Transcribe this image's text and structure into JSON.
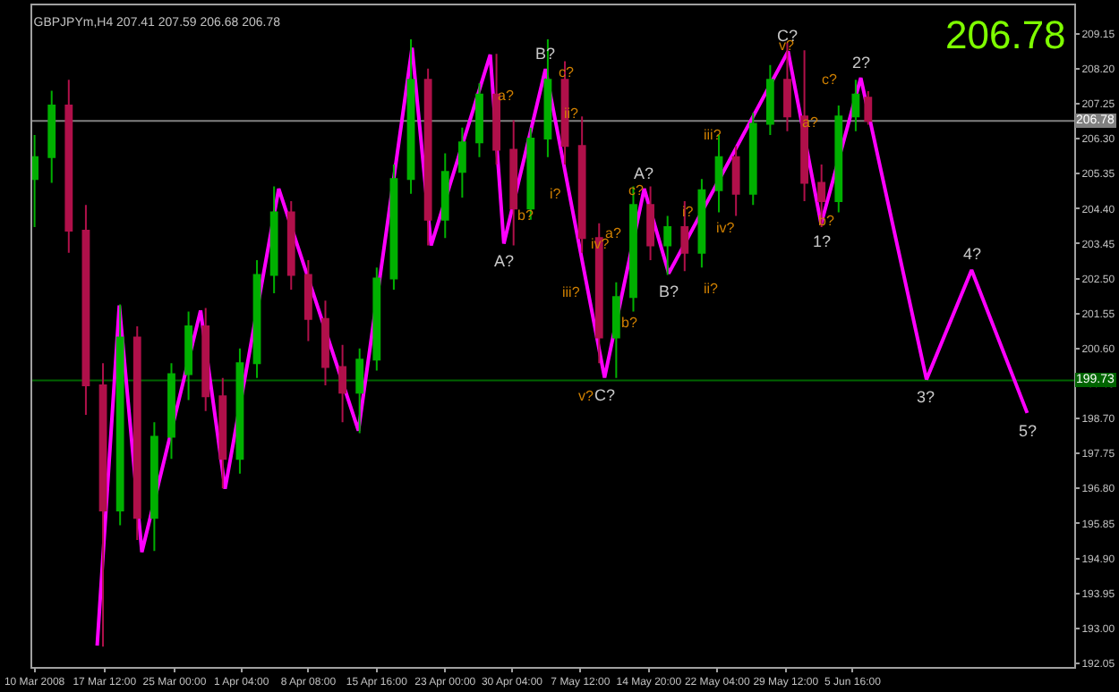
{
  "chart_data": {
    "type": "candlestick",
    "title": "GBPJPYm,H4 207.41 207.59 206.68 206.78",
    "x": [
      "2008-03-10T00:00",
      "2008-03-11T20:00",
      "2008-03-13T16:00",
      "2008-03-15T12:00",
      "2008-03-17T08:00",
      "2008-03-19T04:00",
      "2008-03-21T00:00",
      "2008-03-22T20:00",
      "2008-03-24T16:00",
      "2008-03-26T12:00",
      "2008-03-28T08:00",
      "2008-03-30T04:00",
      "2008-04-01T00:00",
      "2008-04-02T20:00",
      "2008-04-04T16:00",
      "2008-04-06T12:00",
      "2008-04-08T08:00",
      "2008-04-10T04:00",
      "2008-04-12T00:00",
      "2008-04-13T20:00",
      "2008-04-15T16:00",
      "2008-04-17T12:00",
      "2008-04-19T08:00",
      "2008-04-21T04:00",
      "2008-04-23T00:00",
      "2008-04-24T20:00",
      "2008-04-26T16:00",
      "2008-04-28T12:00",
      "2008-04-30T08:00",
      "2008-05-02T04:00",
      "2008-05-04T00:00",
      "2008-05-05T20:00",
      "2008-05-07T16:00",
      "2008-05-09T12:00",
      "2008-05-11T08:00",
      "2008-05-13T04:00",
      "2008-05-15T00:00",
      "2008-05-16T20:00",
      "2008-05-18T16:00",
      "2008-05-20T12:00",
      "2008-05-22T08:00",
      "2008-05-24T04:00",
      "2008-05-26T00:00",
      "2008-05-27T20:00",
      "2008-05-29T16:00",
      "2008-05-31T12:00",
      "2008-06-02T08:00",
      "2008-06-04T04:00",
      "2008-06-06T00:00",
      "2008-06-07T08:00"
    ],
    "ohlc": [
      [
        205.2,
        206.4,
        203.9,
        205.8
      ],
      [
        205.8,
        207.6,
        205.1,
        207.2
      ],
      [
        207.2,
        207.9,
        203.2,
        203.8
      ],
      [
        203.8,
        204.5,
        198.8,
        199.6
      ],
      [
        199.6,
        200.2,
        192.5,
        196.2
      ],
      [
        196.2,
        201.8,
        195.8,
        200.9
      ],
      [
        200.9,
        201.2,
        195.4,
        196.0
      ],
      [
        196.0,
        198.6,
        195.1,
        198.2
      ],
      [
        198.2,
        200.2,
        197.6,
        199.9
      ],
      [
        199.9,
        201.6,
        199.2,
        201.2
      ],
      [
        201.2,
        201.7,
        198.9,
        199.3
      ],
      [
        199.3,
        199.8,
        196.8,
        197.6
      ],
      [
        197.6,
        200.6,
        197.2,
        200.2
      ],
      [
        200.2,
        203.0,
        199.8,
        202.6
      ],
      [
        202.6,
        205.0,
        202.1,
        204.3
      ],
      [
        204.3,
        204.6,
        202.2,
        202.6
      ],
      [
        202.6,
        203.0,
        200.8,
        201.4
      ],
      [
        201.4,
        201.9,
        199.6,
        200.1
      ],
      [
        200.1,
        200.7,
        198.6,
        199.4
      ],
      [
        199.4,
        200.6,
        198.3,
        200.3
      ],
      [
        200.3,
        202.8,
        200.0,
        202.5
      ],
      [
        202.5,
        205.6,
        202.2,
        205.2
      ],
      [
        205.2,
        209.0,
        204.8,
        207.9
      ],
      [
        207.9,
        208.2,
        203.4,
        204.1
      ],
      [
        204.1,
        205.9,
        203.6,
        205.4
      ],
      [
        205.4,
        206.6,
        204.7,
        206.2
      ],
      [
        206.2,
        207.8,
        205.8,
        207.5
      ],
      [
        207.5,
        208.6,
        205.6,
        206.0
      ],
      [
        206.0,
        206.8,
        203.4,
        204.4
      ],
      [
        204.4,
        206.6,
        204.1,
        206.3
      ],
      [
        206.3,
        209.0,
        205.8,
        207.9
      ],
      [
        207.9,
        208.4,
        205.6,
        206.1
      ],
      [
        206.1,
        206.9,
        203.2,
        203.6
      ],
      [
        203.6,
        204.0,
        200.2,
        200.9
      ],
      [
        200.9,
        202.4,
        199.8,
        202.0
      ],
      [
        202.0,
        205.0,
        201.6,
        204.5
      ],
      [
        204.5,
        205.0,
        203.0,
        203.4
      ],
      [
        203.4,
        204.2,
        202.6,
        203.9
      ],
      [
        203.9,
        204.6,
        202.7,
        203.2
      ],
      [
        203.2,
        205.2,
        202.8,
        204.9
      ],
      [
        204.9,
        206.4,
        204.3,
        205.8
      ],
      [
        205.8,
        206.1,
        204.2,
        204.8
      ],
      [
        204.8,
        207.0,
        204.5,
        206.7
      ],
      [
        206.7,
        208.3,
        206.4,
        207.9
      ],
      [
        207.9,
        208.9,
        206.5,
        206.9
      ],
      [
        206.9,
        208.7,
        204.6,
        205.1
      ],
      [
        205.1,
        205.6,
        203.9,
        204.6
      ],
      [
        204.6,
        207.2,
        204.3,
        206.9
      ],
      [
        206.9,
        207.9,
        206.5,
        207.5
      ],
      [
        207.41,
        207.59,
        206.68,
        206.78
      ]
    ],
    "colors": [
      "#00b000",
      "#00b000",
      "#b0104a",
      "#b0104a",
      "#b0104a",
      "#00b000",
      "#b0104a",
      "#00b000",
      "#00b000",
      "#00b000",
      "#b0104a",
      "#b0104a",
      "#00b000",
      "#00b000",
      "#00b000",
      "#b0104a",
      "#b0104a",
      "#b0104a",
      "#b0104a",
      "#00b000",
      "#00b000",
      "#00b000",
      "#00b000",
      "#b0104a",
      "#00b000",
      "#00b000",
      "#00b000",
      "#b0104a",
      "#b0104a",
      "#00b000",
      "#00b000",
      "#b0104a",
      "#b0104a",
      "#b0104a",
      "#00b000",
      "#00b000",
      "#b0104a",
      "#00b000",
      "#b0104a",
      "#00b000",
      "#00b000",
      "#b0104a",
      "#00b000",
      "#00b000",
      "#b0104a",
      "#b0104a",
      "#b0104a",
      "#00b000",
      "#00b000",
      "#b0104a"
    ],
    "series": [
      {
        "type": "line",
        "color": "#ff00ff",
        "x": [
          "2008-03-16T17:00",
          "2008-03-19T02:00",
          "2008-03-21T12:00",
          "2008-03-27T19:00",
          "2008-03-30T10:00",
          "2008-04-05T04:00",
          "2008-04-13T17:00",
          "2008-04-19T11:00",
          "2008-04-21T12:00",
          "2008-04-27T20:00",
          "2008-04-29T07:00",
          "2008-05-03T18:00",
          "2008-05-10T02:00",
          "2008-05-14T08:00",
          "2008-05-16T23:00",
          "2008-05-29T18:00",
          "2008-06-02T07:00",
          "2008-06-06T13:00",
          "2008-06-13T14:00",
          "2008-06-18T10:00",
          "2008-06-24T09:00"
        ],
        "values": [
          192.53,
          201.77,
          195.07,
          201.63,
          196.79,
          204.94,
          198.37,
          208.77,
          203.4,
          208.58,
          203.45,
          208.19,
          199.81,
          204.94,
          202.64,
          208.67,
          203.98,
          207.95,
          199.76,
          202.73,
          198.85
        ]
      }
    ],
    "marker": "none",
    "line_style": "solid",
    "grid": false,
    "xlim": [
      "2008-03-09T18:00",
      "2008-06-29T10:00"
    ],
    "ylim": [
      191.95,
      209.92
    ],
    "xticks": [
      {
        "value": "2008-03-10T00:00",
        "label": "10 Mar 2008"
      },
      {
        "value": "2008-03-17T12:00",
        "label": "17 Mar 12:00"
      },
      {
        "value": "2008-03-25T00:00",
        "label": "25 Mar 00:00"
      },
      {
        "value": "2008-04-01T04:00",
        "label": "1 Apr 04:00"
      },
      {
        "value": "2008-04-08T08:00",
        "label": "8 Apr 08:00"
      },
      {
        "value": "2008-04-15T16:00",
        "label": "15 Apr 16:00"
      },
      {
        "value": "2008-04-23T00:00",
        "label": "23 Apr 00:00"
      },
      {
        "value": "2008-04-30T04:00",
        "label": "30 Apr 04:00"
      },
      {
        "value": "2008-05-07T12:00",
        "label": "7 May 12:00"
      },
      {
        "value": "2008-05-14T20:00",
        "label": "14 May 20:00"
      },
      {
        "value": "2008-05-22T04:00",
        "label": "22 May 04:00"
      },
      {
        "value": "2008-05-29T12:00",
        "label": "29 May 12:00"
      },
      {
        "value": "2008-06-05T16:00",
        "label": "5 Jun 16:00"
      }
    ],
    "yticks": [
      209.15,
      {
        "value": 208.2,
        "label": "208.20"
      },
      207.25,
      {
        "value": 206.3,
        "label": "206.30"
      },
      205.35,
      {
        "value": 204.4,
        "label": "204.40"
      },
      203.45,
      {
        "value": 202.5,
        "label": "202.50"
      },
      201.55,
      {
        "value": 200.6,
        "label": "200.60"
      },
      199.65,
      {
        "value": 198.7,
        "label": "198.70"
      },
      197.75,
      {
        "value": 196.8,
        "label": "196.80"
      },
      195.85,
      {
        "value": 194.9,
        "label": "194.90"
      },
      193.95,
      {
        "value": 193,
        "label": "193.00"
      },
      192.05
    ],
    "ref_lines": [
      {
        "axis": "y",
        "value": 206.78,
        "label": "206.78",
        "color": "#808080"
      },
      {
        "axis": "y",
        "value": 199.73,
        "label": "199.73",
        "color": "#006400"
      }
    ],
    "annotations": [
      {
        "text": "A?",
        "x": "2008-04-29T07:00",
        "y": 203.45
      },
      {
        "text": "B?",
        "x": "2008-05-03T18:00",
        "y": 208.19
      },
      {
        "text": "C?",
        "x": "2008-05-10T02:00",
        "y": 199.81
      },
      {
        "text": "A?",
        "x": "2008-05-14T08:00",
        "y": 204.94
      },
      {
        "text": "B?",
        "x": "2008-05-16T23:00",
        "y": 202.64
      },
      {
        "text": "C?",
        "x": "2008-05-29T18:00",
        "y": 208.67
      },
      {
        "text": "1?",
        "x": "2008-06-02T07:00",
        "y": 203.98
      },
      {
        "text": "2?",
        "x": "2008-06-06T13:00",
        "y": 207.95
      },
      {
        "text": "3?",
        "x": "2008-06-13T14:00",
        "y": 199.76
      },
      {
        "text": "4?",
        "x": "2008-06-18T10:00",
        "y": 202.73
      },
      {
        "text": "5?",
        "x": "2008-06-24T09:00",
        "y": 198.85
      },
      "206.78",
      "a?",
      "b?",
      "ii?",
      "i?",
      "iii?",
      "v?",
      "c?",
      "a?",
      "iv?",
      "b?",
      "i?",
      "iii?",
      "iv?",
      "ii?",
      "a?",
      "c?",
      "b?",
      "v?",
      "c?"
    ]
  }
}
